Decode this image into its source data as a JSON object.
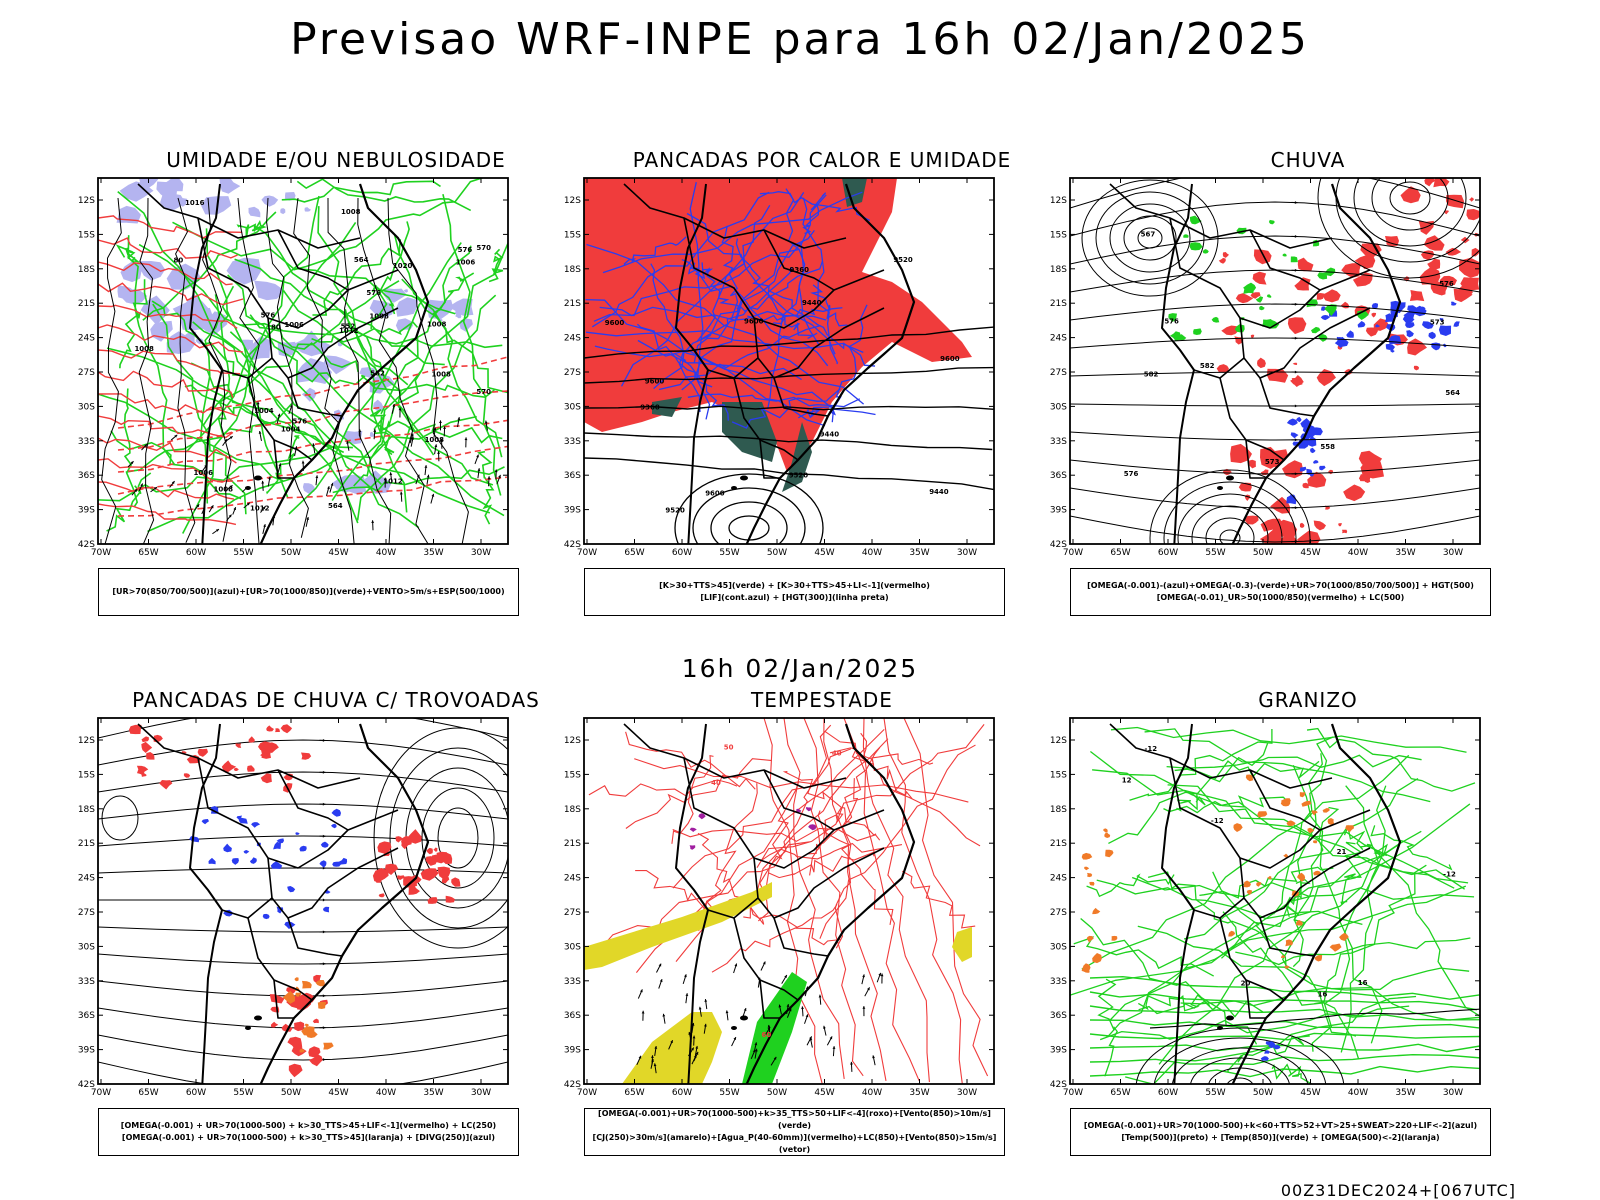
{
  "title": "Previsao WRF-INPE  para 16h 02/Jan/2025",
  "mid_time": "16h 02/Jan/2025",
  "run_stamp": "00Z31DEC2024+[067UTC]",
  "axes": {
    "lat_labels": [
      "12S",
      "15S",
      "18S",
      "21S",
      "24S",
      "27S",
      "30S",
      "33S",
      "36S",
      "39S",
      "42S"
    ],
    "lon_labels": [
      "70W",
      "65W",
      "60W",
      "55W",
      "50W",
      "45W",
      "40W",
      "35W",
      "30W"
    ]
  },
  "colors": {
    "red": "#f03c3c",
    "green": "#1fd11f",
    "blue": "#2a3cf0",
    "lavender": "#b4b4f0",
    "darkteal": "#2f5a50",
    "yellow": "#e1d728",
    "orange": "#f07a28",
    "purple": "#a01ea0",
    "black": "#000000"
  },
  "panels": [
    {
      "id": "umidade",
      "title": "UMIDADE E/OU NEBULOSIDADE",
      "legend": [
        "[UR>70(850/700/500)](azul)+[UR>70(1000/850)](verde)+VENTO>5m/s+ESP(500/1000)"
      ],
      "labels": [
        "1006",
        "1008",
        "1008",
        "1008",
        "1012",
        "1008",
        "1004",
        "1012",
        "1008",
        "1008",
        "1004",
        "1006",
        "1012",
        "1016",
        "1020",
        "1008",
        "1006",
        "576",
        "576",
        "570",
        "570",
        "576",
        "582",
        "564",
        "564",
        "576",
        "552",
        "80",
        "80"
      ]
    },
    {
      "id": "pancadas-calor",
      "title": "PANCADAS POR CALOR E UMIDADE",
      "legend": [
        "[K>30+TTS>45](verde) + [K>30+TTS>45+LI<-1](vermelho)",
        "[LIF](cont.azul) + [HGT(300)](linha preta)"
      ],
      "labels": [
        "9600",
        "9600",
        "9600",
        "9600",
        "9600",
        "9520",
        "9520",
        "9520",
        "9440",
        "9440",
        "9360",
        "9360",
        "9440"
      ]
    },
    {
      "id": "chuva",
      "title": "CHUVA",
      "legend": [
        "[OMEGA(-0.001)-(azul)+OMEGA(-0.3)-(verde)+UR>70(1000/850/700/500)] + HGT(500)",
        "[OMEGA(-0.01)_UR>50(1000/850)(vermelho) + LC(500)"
      ],
      "labels": [
        "582",
        "582",
        "576",
        "576",
        "576",
        "573",
        "573",
        "567",
        "564",
        "558"
      ]
    },
    {
      "id": "pancadas-trovoadas",
      "title": "PANCADAS DE CHUVA C/ TROVOADAS",
      "legend": [
        "[OMEGA(-0.001) + UR>70(1000-500) + k>30_TTS>45+LIF<-1](vermelho) + LC(250)",
        "[OMEGA(-0.001) + UR>70(1000-500) + k>30_TTS>45](laranja) + [DIVG(250)](azul)"
      ],
      "labels": []
    },
    {
      "id": "tempestade",
      "title": "TEMPESTADE",
      "legend": [
        "[OMEGA(-0.001)+UR>70(1000-500)+k>35_TTS>50+LIF<-4](roxo)+[Vento(850)>10m/s](verde)",
        "[CJ(250)>30m/s](amarelo)+[Agua_P(40-60mm)](vermelho)+LC(850)+[Vento(850)>15m/s](vetor)"
      ],
      "labels": [
        "40",
        "40",
        "50",
        "60"
      ]
    },
    {
      "id": "granizo",
      "title": "GRANIZO",
      "legend": [
        "[OMEGA(-0.001)+UR>70(1000-500)+k<60+TTS>52+VT>25+SWEAT>220+LIF<-2](azul)",
        "[Temp(500)](preto) + [Temp(850)](verde) + [OMEGA(500)<-2](laranja)"
      ],
      "labels": [
        "-12",
        "-12",
        "-12",
        "16",
        "16",
        "12",
        "21",
        "20"
      ]
    }
  ]
}
